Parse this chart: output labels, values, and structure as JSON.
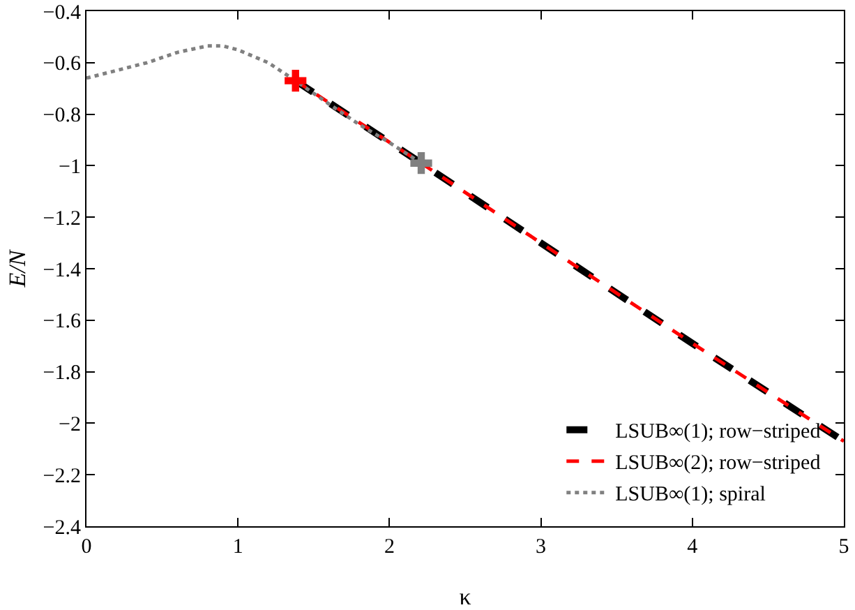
{
  "chart_data": {
    "type": "line",
    "xlabel": "κ",
    "ylabel": "E/N",
    "xlim": [
      0,
      5
    ],
    "xticks": [
      0,
      1,
      2,
      3,
      4,
      5
    ],
    "ylim": [
      -2.4,
      -0.4
    ],
    "yticks": [
      {
        "value": -2.4,
        "label": "−2.4"
      },
      {
        "value": -2.2,
        "label": "−2.2"
      },
      {
        "value": -2,
        "label": "−2"
      },
      {
        "value": -1.8,
        "label": "−1.8"
      },
      {
        "value": -1.6,
        "label": "−1.6"
      },
      {
        "value": -1.4,
        "label": "−1.4"
      },
      {
        "value": -1.2,
        "label": "−1.2"
      },
      {
        "value": -1,
        "label": "−1"
      },
      {
        "value": -0.8,
        "label": "−0.8"
      },
      {
        "value": -0.6,
        "label": "−0.6"
      },
      {
        "value": -0.4,
        "label": "−0.4"
      }
    ],
    "grid": false,
    "legend": "bottom right",
    "marker": "none",
    "series": [
      {
        "name": "LSUB∞(1); row−striped",
        "color": "#000000",
        "line_style": "dashed",
        "x": [
          1.38,
          2.21,
          3,
          4,
          5
        ],
        "values": [
          -0.67,
          -0.99,
          -1.3,
          -1.69,
          -2.07
        ]
      },
      {
        "name": "LSUB∞(2); row−striped",
        "color": "#ff0000",
        "line_style": "dashed",
        "x": [
          1.38,
          2.21,
          3,
          4,
          5
        ],
        "values": [
          -0.67,
          -0.99,
          -1.3,
          -1.69,
          -2.07
        ]
      },
      {
        "name": "LSUB∞(1); spiral",
        "color": "#808080",
        "line_style": "dotted",
        "x": [
          0,
          0.2,
          0.4,
          0.6,
          0.8,
          0.9,
          1.0,
          1.2,
          1.38,
          1.6,
          1.8,
          2.0,
          2.21
        ],
        "values": [
          -0.66,
          -0.63,
          -0.6,
          -0.56,
          -0.535,
          -0.535,
          -0.55,
          -0.6,
          -0.67,
          -0.76,
          -0.84,
          -0.91,
          -0.99
        ]
      },
      {
        "type": "scatter",
        "marker": "cross",
        "color": "#ff0000",
        "x": [
          1.38
        ],
        "values": [
          -0.67
        ]
      },
      {
        "type": "scatter",
        "marker": "cross",
        "color": "#808080",
        "x": [
          2.21
        ],
        "values": [
          -0.99
        ]
      }
    ]
  }
}
